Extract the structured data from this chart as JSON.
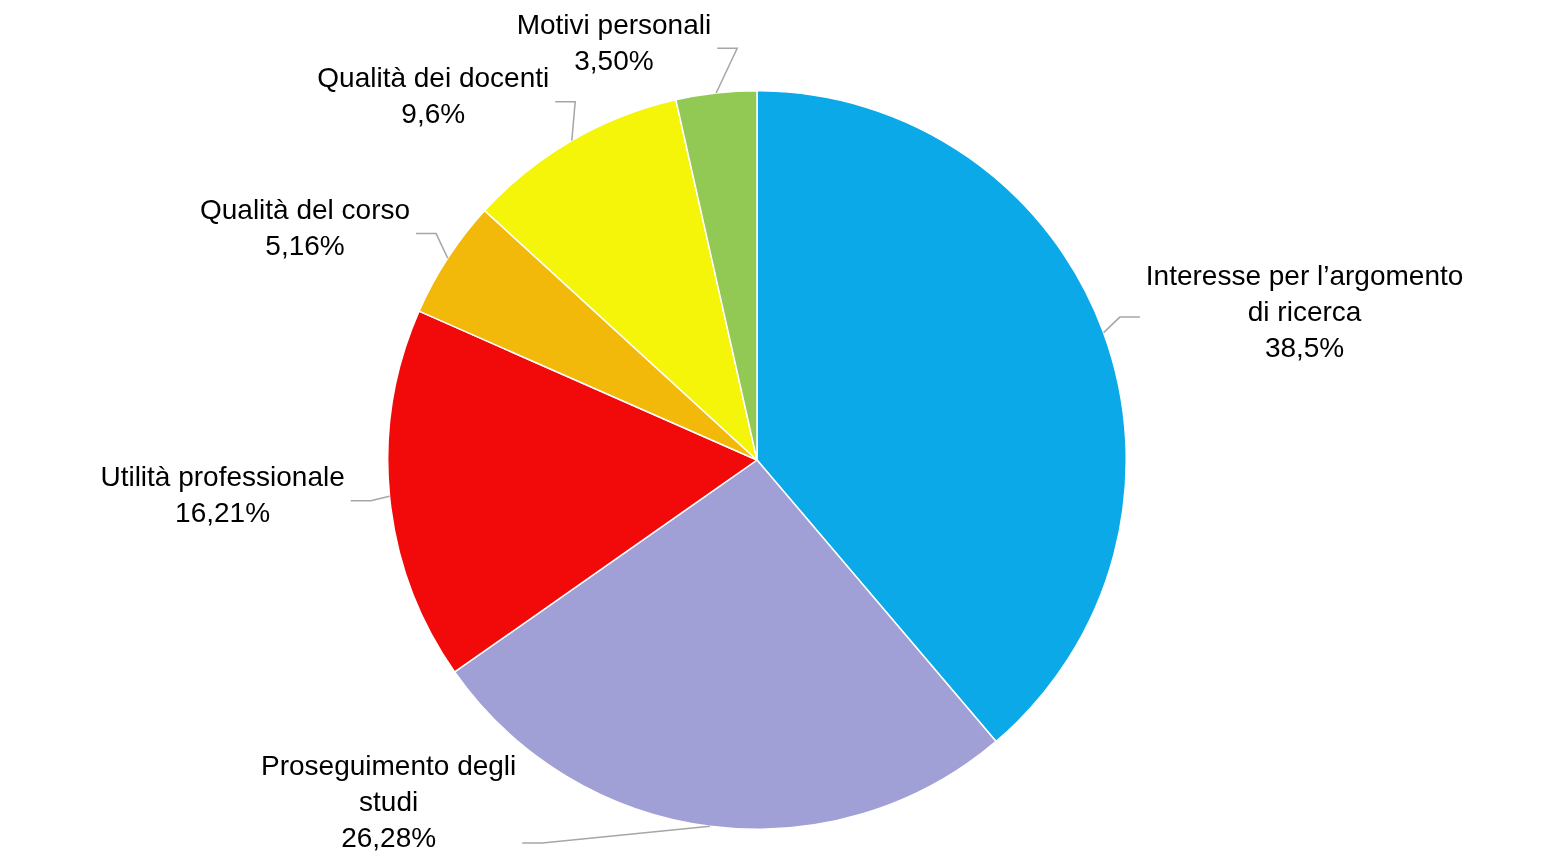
{
  "chart_data": {
    "type": "pie",
    "categories": [
      "Interesse per l’argomento di ricerca",
      "Proseguimento degli studi",
      "Utilità professionale",
      "Qualità del corso",
      "Qualità dei docenti",
      "Motivi personali"
    ],
    "values": [
      38.5,
      26.28,
      16.21,
      5.16,
      9.6,
      3.5
    ],
    "colors": [
      "#0ba9e8",
      "#a09fd6",
      "#f20a0a",
      "#f2b90a",
      "#f5f50a",
      "#92c955"
    ],
    "value_labels": [
      "38,5%",
      "26,28%",
      "16,21%",
      "5,16%",
      "9,6%",
      "3,50%"
    ]
  }
}
